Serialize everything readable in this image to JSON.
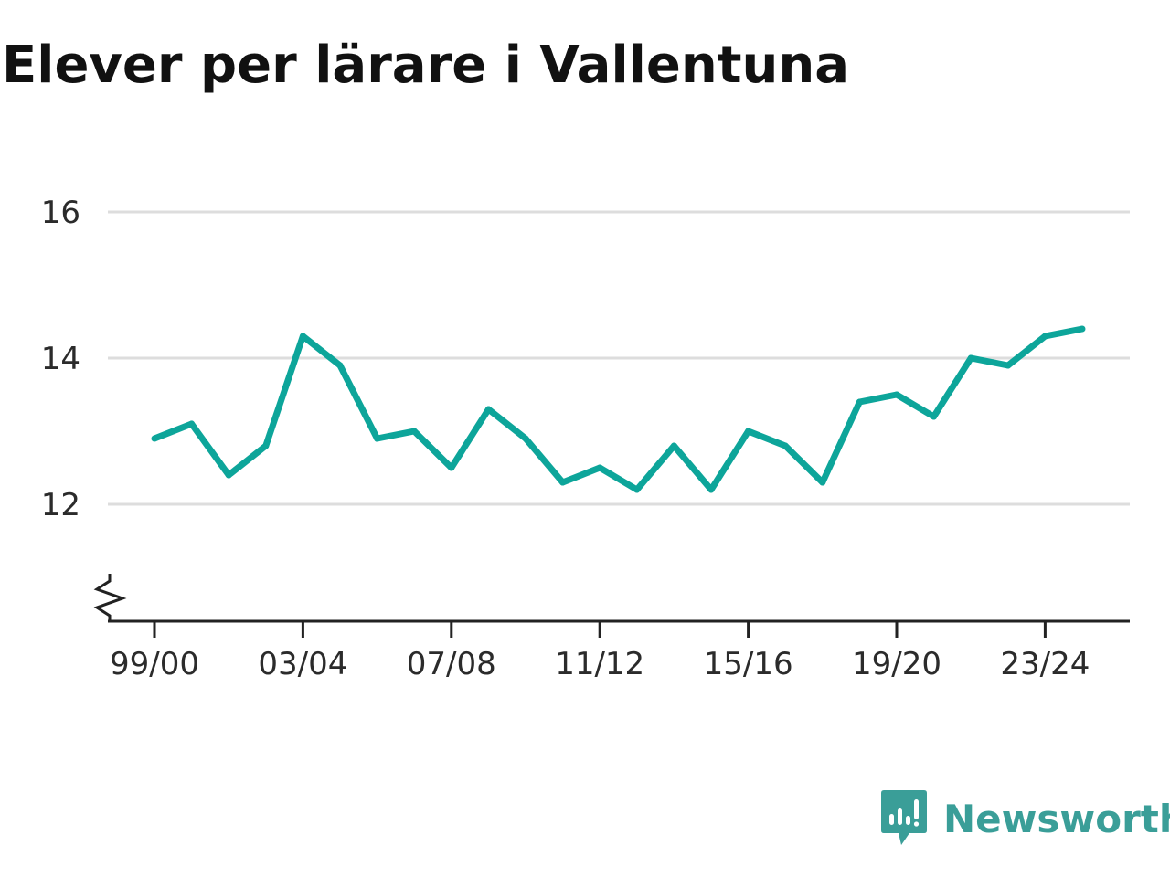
{
  "chart_data": {
    "type": "line",
    "title": "Elever per lärare i Vallentuna",
    "xlabel": "",
    "ylabel": "",
    "x": [
      "99/00",
      "00/01",
      "01/02",
      "02/03",
      "03/04",
      "04/05",
      "05/06",
      "06/07",
      "07/08",
      "08/09",
      "09/10",
      "10/11",
      "11/12",
      "12/13",
      "13/14",
      "14/15",
      "15/16",
      "16/17",
      "17/18",
      "18/19",
      "19/20",
      "20/21",
      "21/22",
      "22/23",
      "23/24",
      "24/25"
    ],
    "x_tick_labels": [
      "99/00",
      "03/04",
      "07/08",
      "11/12",
      "15/16",
      "19/20",
      "23/24"
    ],
    "series": [
      {
        "values": [
          12.9,
          13.1,
          12.4,
          12.8,
          14.3,
          13.9,
          12.9,
          13.0,
          12.5,
          13.3,
          12.9,
          12.3,
          12.5,
          12.2,
          12.8,
          12.2,
          13.0,
          12.8,
          12.3,
          13.4,
          13.5,
          13.2,
          14.0,
          13.9,
          14.3,
          14.4
        ],
        "color": "#0da59a"
      }
    ],
    "y_ticks": [
      12,
      14,
      16
    ],
    "ylim": [
      10.4,
      16
    ],
    "y_axis_break": true,
    "grid": true,
    "legend": "none"
  },
  "colors": {
    "line": "#0da59a",
    "grid": "#dddddd",
    "axis": "#222222",
    "brand": "#3a9e98"
  },
  "brand": {
    "icon": "newsworthy-logo-icon",
    "name": "Newsworthy"
  }
}
